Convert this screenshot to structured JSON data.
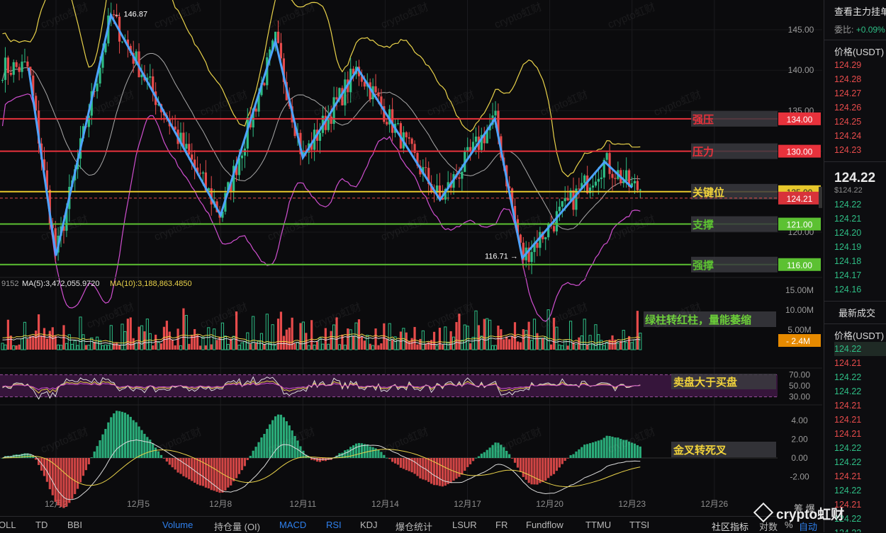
{
  "chart_data": {
    "type": "candlestick",
    "x_axis": {
      "tick_labels": [
        "12月2",
        "12月5",
        "12月8",
        "12月11",
        "12月14",
        "12月17",
        "12月20",
        "12月23",
        "12月26"
      ]
    },
    "price_panel": {
      "y_ticks": [
        "145.00",
        "140.00",
        "135.00",
        "130.00",
        "125.00",
        "120.00"
      ],
      "ylim": [
        114.5,
        147.5
      ],
      "high_label": "146.87",
      "low_label": "116.71",
      "current_price": "124.21",
      "indicators": [
        "BOLL upper",
        "BOLL middle",
        "BOLL lower"
      ],
      "levels": [
        {
          "name": "强压",
          "price": 134.0,
          "tag": "134.00",
          "color": "#e8323c"
        },
        {
          "name": "压力",
          "price": 130.0,
          "tag": "130.00",
          "color": "#e8323c"
        },
        {
          "name": "关键位",
          "price": 125.0,
          "tag": "125.00",
          "color": "#e7c82c"
        },
        {
          "name": "支撑",
          "price": 121.0,
          "tag": "121.00",
          "color": "#5cc132"
        },
        {
          "name": "强撑",
          "price": 116.0,
          "tag": "116.00",
          "color": "#5cc132"
        }
      ],
      "wave": [
        {
          "date": "12月1",
          "price": 140.3
        },
        {
          "date": "12月2",
          "price": 117.1
        },
        {
          "date": "12月4",
          "price": 146.8
        },
        {
          "date": "12月8",
          "price": 122.1
        },
        {
          "date": "12月10",
          "price": 143.6
        },
        {
          "date": "12月11",
          "price": 129.2
        },
        {
          "date": "12月13",
          "price": 140.2
        },
        {
          "date": "12月16",
          "price": 124.0
        },
        {
          "date": "12月18",
          "price": 134.0
        },
        {
          "date": "12月19",
          "price": 116.8
        },
        {
          "date": "12月22",
          "price": 128.7
        },
        {
          "date": "12月23",
          "price": 125.5
        }
      ]
    },
    "volume_panel": {
      "legend": {
        "ma5_label": "MA(5):3,472,055.9720",
        "ma10_label": "MA(10):3,188,863.4850",
        "partial_left": "9152"
      },
      "y_ticks": [
        "15.00M",
        "10.00M",
        "5.00M"
      ],
      "current_tag": "2.4M",
      "annotation": "绿柱转红柱，量能萎缩"
    },
    "rsi_panel": {
      "y_ticks": [
        "70.00",
        "50.00",
        "30.00"
      ],
      "annotation": "卖盘大于买盘"
    },
    "macd_panel": {
      "y_ticks": [
        "4.00",
        "2.00",
        "0.00",
        "-2.00"
      ],
      "annotation": "金叉转死叉"
    }
  },
  "colors": {
    "up": "#2ebd85",
    "down": "#e64b4b",
    "wave": "#4da3ff",
    "boll_upper": "#e9d24a",
    "boll_mid": "#cfcfcf",
    "boll_lower": "#d04fd0",
    "accent": "#2f80ed"
  },
  "side_panel": {
    "title": "查看主力挂单",
    "ratio_label": "委比:",
    "ratio_value": "+0.09%",
    "price_header": "价格(USDT)",
    "asks": [
      "124.29",
      "124.28",
      "124.27",
      "124.26",
      "124.25",
      "124.24",
      "124.23"
    ],
    "last_price": "124.22",
    "last_price_usd": "$124.22",
    "bids": [
      "124.22",
      "124.21",
      "124.20",
      "124.19",
      "124.18",
      "124.17",
      "124.16"
    ],
    "trades_header": "最新成交",
    "trades_price_header": "价格(USDT)",
    "trades": [
      {
        "price": "124.22",
        "side": "buy"
      },
      {
        "price": "124.21",
        "side": "sell"
      },
      {
        "price": "124.22",
        "side": "buy"
      },
      {
        "price": "124.22",
        "side": "buy"
      },
      {
        "price": "124.21",
        "side": "sell"
      },
      {
        "price": "124.21",
        "side": "sell"
      },
      {
        "price": "124.21",
        "side": "sell"
      },
      {
        "price": "124.22",
        "side": "buy"
      },
      {
        "price": "124.22",
        "side": "buy"
      },
      {
        "price": "124.21",
        "side": "sell"
      },
      {
        "price": "124.22",
        "side": "buy"
      },
      {
        "price": "124.21",
        "side": "sell"
      },
      {
        "price": "124.22",
        "side": "buy"
      },
      {
        "price": "124.22",
        "side": "buy"
      }
    ]
  },
  "bottom_bar": {
    "tabs": [
      "OLL",
      "TD",
      "BBI",
      "Volume",
      "持仓量 (OI)",
      "MACD",
      "RSI",
      "KDJ",
      "爆仓统计",
      "LSUR",
      "FR",
      "Fundflow",
      "TTMU",
      "TTSI",
      "社区指标",
      "对数",
      "%",
      "自动"
    ],
    "active": [
      "Volume",
      "MACD",
      "RSI",
      "自动"
    ],
    "right_top": "筹 爆"
  },
  "watermark": "crypto虹财"
}
